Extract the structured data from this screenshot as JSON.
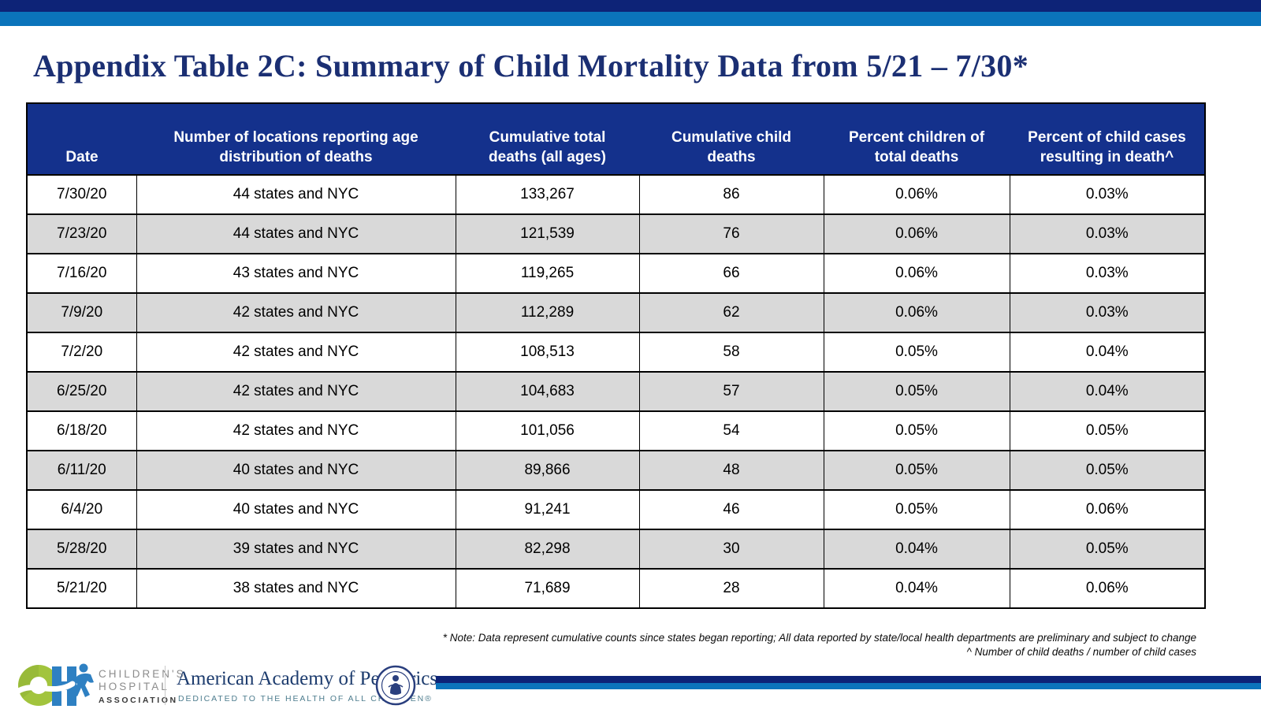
{
  "page": {
    "title": "Appendix Table 2C: Summary of Child Mortality Data from 5/21 – 7/30*"
  },
  "table": {
    "columns": [
      "Date",
      "Number of locations reporting age distribution of deaths",
      "Cumulative total deaths (all ages)",
      "Cumulative child deaths",
      "Percent children of total deaths",
      "Percent of child cases resulting in death^"
    ],
    "rows": [
      [
        "7/30/20",
        "44 states and NYC",
        "133,267",
        "86",
        "0.06%",
        "0.03%"
      ],
      [
        "7/23/20",
        "44 states and NYC",
        "121,539",
        "76",
        "0.06%",
        "0.03%"
      ],
      [
        "7/16/20",
        "43 states and NYC",
        "119,265",
        "66",
        "0.06%",
        "0.03%"
      ],
      [
        "7/9/20",
        "42 states and NYC",
        "112,289",
        "62",
        "0.06%",
        "0.03%"
      ],
      [
        "7/2/20",
        "42 states and NYC",
        "108,513",
        "58",
        "0.05%",
        "0.04%"
      ],
      [
        "6/25/20",
        "42 states and NYC",
        "104,683",
        "57",
        "0.05%",
        "0.04%"
      ],
      [
        "6/18/20",
        "42 states and NYC",
        "101,056",
        "54",
        "0.05%",
        "0.05%"
      ],
      [
        "6/11/20",
        "40 states and NYC",
        "89,866",
        "48",
        "0.05%",
        "0.05%"
      ],
      [
        "6/4/20",
        "40 states and NYC",
        "91,241",
        "46",
        "0.05%",
        "0.06%"
      ],
      [
        "5/28/20",
        "39 states and NYC",
        "82,298",
        "30",
        "0.04%",
        "0.05%"
      ],
      [
        "5/21/20",
        "38 states and NYC",
        "71,689",
        "28",
        "0.04%",
        "0.06%"
      ]
    ]
  },
  "footnotes": {
    "line1": "* Note: Data represent cumulative counts since states began reporting; All data reported by state/local health departments are preliminary and subject to change",
    "line2": "^ Number of child deaths / number of child cases"
  },
  "footer": {
    "cha": {
      "line1": "CHILDREN'S",
      "line2": "HOSPITAL",
      "line3": "ASSOCIATION"
    },
    "aap": {
      "title": "American Academy of Pediatrics",
      "tagline": "DEDICATED TO THE HEALTH OF ALL CHILDREN®"
    }
  },
  "colors": {
    "banner_navy": "#0d2377",
    "banner_blue": "#0b74bb",
    "title_navy": "#1b2f73",
    "table_header_navy": "#14318c",
    "row_stripe_gray": "#d9d9d9",
    "cha_green": "#a2c43d",
    "cha_blue": "#2e80c2",
    "aap_navy": "#1d3c6e",
    "aap_teal": "#4e7d8e"
  }
}
